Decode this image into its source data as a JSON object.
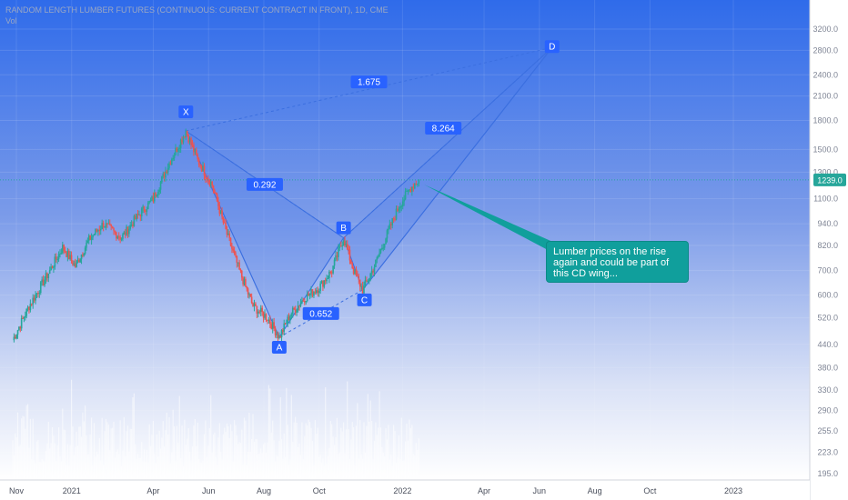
{
  "header": {
    "title": "RANDOM LENGTH LUMBER FUTURES (CONTINUOUS: CURRENT CONTRACT IN FRONT), 1D, CME",
    "subtitle": "Vol"
  },
  "callout_text": "Lumber prices on the rise again and could be part of this CD wing...",
  "colors": {
    "pattern_fill": "#4f7de8",
    "pattern_line": "#3b6fe0",
    "label_bg": "#2962ff",
    "callout_bg": "#109f9c",
    "up_candle": "#26a69a",
    "down_candle": "#ef5350",
    "price_tag": "#26a69a"
  },
  "chart_data": {
    "type": "line",
    "scale": "log",
    "y_ticks": [
      195.0,
      223.0,
      255.0,
      290.0,
      330.0,
      380.0,
      440.0,
      520.0,
      600.0,
      700.0,
      820.0,
      940.0,
      1100.0,
      1300.0,
      1500.0,
      1800.0,
      2100.0,
      2400.0,
      2800.0,
      3200.0
    ],
    "x_ticks": [
      "Nov",
      "2021",
      "Apr",
      "Jun",
      "Aug",
      "Oct",
      "2022",
      "Apr",
      "Jun",
      "Aug",
      "Oct",
      "2023"
    ],
    "last_price": 1239.0,
    "series": [
      {
        "values": [
          {
            "date": "2020-10-28",
            "close": 452
          },
          {
            "date": "2020-11-15",
            "close": 560
          },
          {
            "date": "2020-12-05",
            "close": 680
          },
          {
            "date": "2020-12-22",
            "close": 810
          },
          {
            "date": "2021-01-05",
            "close": 720
          },
          {
            "date": "2021-01-20",
            "close": 850
          },
          {
            "date": "2021-02-05",
            "close": 940
          },
          {
            "date": "2021-02-25",
            "close": 860
          },
          {
            "date": "2021-03-15",
            "close": 990
          },
          {
            "date": "2021-04-01",
            "close": 1100
          },
          {
            "date": "2021-04-20",
            "close": 1400
          },
          {
            "date": "2021-05-07",
            "close": 1686
          },
          {
            "date": "2021-05-20",
            "close": 1400
          },
          {
            "date": "2021-06-05",
            "close": 1200
          },
          {
            "date": "2021-06-20",
            "close": 900
          },
          {
            "date": "2021-07-05",
            "close": 700
          },
          {
            "date": "2021-07-20",
            "close": 560
          },
          {
            "date": "2021-08-05",
            "close": 520
          },
          {
            "date": "2021-08-18",
            "close": 460
          },
          {
            "date": "2021-08-30",
            "close": 530
          },
          {
            "date": "2021-09-15",
            "close": 590
          },
          {
            "date": "2021-10-01",
            "close": 630
          },
          {
            "date": "2021-10-15",
            "close": 700
          },
          {
            "date": "2021-10-28",
            "close": 860
          },
          {
            "date": "2021-11-08",
            "close": 700
          },
          {
            "date": "2021-11-18",
            "close": 620
          },
          {
            "date": "2021-12-01",
            "close": 720
          },
          {
            "date": "2021-12-15",
            "close": 880
          },
          {
            "date": "2021-12-28",
            "close": 1050
          },
          {
            "date": "2022-01-10",
            "close": 1180
          },
          {
            "date": "2022-01-19",
            "close": 1239
          }
        ]
      }
    ],
    "pattern": {
      "points": [
        {
          "label": "X",
          "date": "2021-05-07",
          "price": 1686
        },
        {
          "label": "A",
          "date": "2021-08-18",
          "price": 460
        },
        {
          "label": "B",
          "date": "2021-10-28",
          "price": 860
        },
        {
          "label": "C",
          "date": "2021-11-18",
          "price": 620
        },
        {
          "label": "D",
          "date": "2022-06-15",
          "price": 2850
        }
      ],
      "ratios": [
        {
          "label": "0.292",
          "from": "X",
          "to": "B"
        },
        {
          "label": "0.652",
          "from": "A",
          "to": "C"
        },
        {
          "label": "8.264",
          "from": "B",
          "to": "D"
        },
        {
          "label": "1.675",
          "from": "X",
          "to": "D"
        }
      ]
    }
  }
}
